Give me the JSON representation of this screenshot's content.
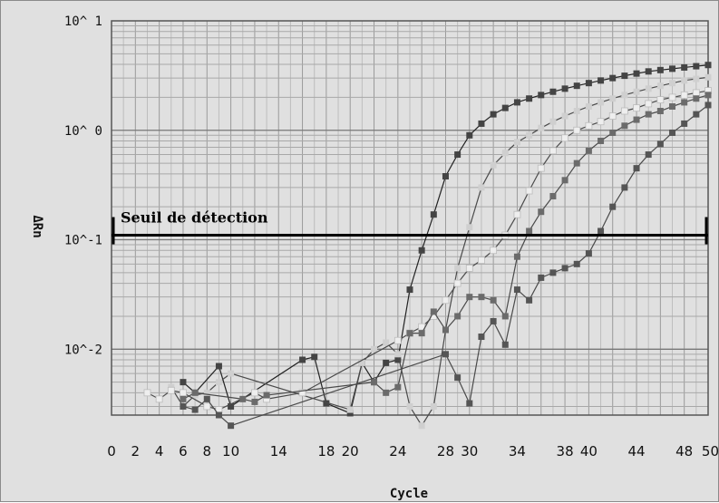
{
  "chart_data": {
    "type": "line",
    "y_scale": "log",
    "xlabel": "Cycle",
    "ylabel": "ΔRn",
    "xlim": [
      0,
      50
    ],
    "ylim": [
      0.0025,
      10
    ],
    "grid": true,
    "x_ticks": [
      "0",
      "2",
      "4",
      "6",
      "8",
      "10",
      "14",
      "18",
      "20",
      "24",
      "28",
      "30",
      "34",
      "38",
      "40",
      "44",
      "48",
      "50"
    ],
    "y_ticks": [
      {
        "value": 10,
        "label": "10^ 1"
      },
      {
        "value": 1,
        "label": "10^ 0"
      },
      {
        "value": 0.1,
        "label": "10^-1"
      },
      {
        "value": 0.01,
        "label": "10^-2"
      }
    ],
    "threshold": {
      "value": 0.11,
      "label": "Seuil de détection",
      "color": "#000000"
    },
    "series": [
      {
        "color": "#444444",
        "x": [
          6,
          7,
          9,
          10,
          16,
          17,
          18,
          20,
          21,
          22,
          23,
          24,
          25,
          26,
          27,
          28,
          29,
          30,
          31,
          32,
          33,
          34,
          35,
          36,
          37,
          38,
          39,
          40,
          41,
          42,
          43,
          44,
          45,
          46,
          47,
          48,
          49,
          50
        ],
        "y": [
          0.005,
          0.004,
          0.007,
          0.003,
          0.008,
          0.0085,
          0.0032,
          0.0026,
          0.0075,
          0.005,
          0.0075,
          0.008,
          0.035,
          0.08,
          0.17,
          0.38,
          0.6,
          0.9,
          1.15,
          1.4,
          1.6,
          1.8,
          1.95,
          2.1,
          2.25,
          2.4,
          2.55,
          2.7,
          2.85,
          3.0,
          3.15,
          3.3,
          3.45,
          3.55,
          3.65,
          3.75,
          3.85,
          3.95
        ]
      },
      {
        "color": "#cfcfcf",
        "x": [
          5,
          6,
          7,
          8,
          9,
          10,
          20,
          21,
          22,
          23,
          24,
          25,
          26,
          27,
          28,
          29,
          30,
          31,
          32,
          33,
          34,
          35,
          36,
          37,
          38,
          39,
          40,
          41,
          42,
          43,
          44,
          45,
          46,
          47,
          48,
          49,
          50
        ],
        "y": [
          0.0045,
          0.003,
          0.0038,
          0.004,
          0.005,
          0.006,
          0.0028,
          0.0075,
          0.01,
          0.0115,
          0.009,
          0.003,
          0.002,
          0.003,
          0.015,
          0.055,
          0.13,
          0.3,
          0.48,
          0.62,
          0.78,
          0.9,
          1.05,
          1.2,
          1.35,
          1.5,
          1.65,
          1.8,
          1.95,
          2.1,
          2.25,
          2.4,
          2.55,
          2.7,
          2.85,
          2.95,
          3.05
        ]
      },
      {
        "color": "#eeeeee",
        "x": [
          3,
          4,
          5,
          6,
          8,
          9,
          12,
          13,
          16,
          24,
          25,
          26,
          27,
          28,
          29,
          30,
          31,
          32,
          33,
          34,
          35,
          36,
          37,
          38,
          39,
          40,
          41,
          42,
          43,
          44,
          45,
          46,
          47,
          48,
          49,
          50
        ],
        "y": [
          0.004,
          0.0035,
          0.0042,
          0.004,
          0.003,
          0.0028,
          0.004,
          0.0035,
          0.004,
          0.012,
          0.014,
          0.016,
          0.02,
          0.028,
          0.04,
          0.055,
          0.065,
          0.08,
          0.11,
          0.17,
          0.28,
          0.45,
          0.65,
          0.85,
          1.0,
          1.1,
          1.2,
          1.35,
          1.5,
          1.6,
          1.75,
          1.9,
          2.0,
          2.1,
          2.2,
          2.3
        ]
      },
      {
        "color": "#6b6b6b",
        "x": [
          6,
          7,
          11,
          12,
          13,
          22,
          23,
          24,
          25,
          26,
          27,
          28,
          29,
          30,
          31,
          32,
          33,
          34,
          35,
          36,
          37,
          38,
          39,
          40,
          41,
          42,
          43,
          44,
          45,
          46,
          47,
          48,
          49,
          50
        ],
        "y": [
          0.0035,
          0.004,
          0.0035,
          0.0033,
          0.0038,
          0.005,
          0.004,
          0.0045,
          0.014,
          0.014,
          0.022,
          0.015,
          0.02,
          0.03,
          0.03,
          0.028,
          0.02,
          0.07,
          0.12,
          0.18,
          0.25,
          0.35,
          0.5,
          0.65,
          0.8,
          0.95,
          1.1,
          1.25,
          1.4,
          1.5,
          1.65,
          1.8,
          1.95,
          2.1
        ]
      },
      {
        "color": "#555555",
        "x": [
          6,
          7,
          8,
          9,
          10,
          28,
          29,
          30,
          31,
          32,
          33,
          34,
          35,
          36,
          37,
          38,
          39,
          40,
          41,
          42,
          43,
          44,
          45,
          46,
          47,
          48,
          49,
          50
        ],
        "y": [
          0.003,
          0.0028,
          0.0035,
          0.0025,
          0.002,
          0.009,
          0.0055,
          0.0032,
          0.013,
          0.018,
          0.011,
          0.035,
          0.028,
          0.045,
          0.05,
          0.055,
          0.06,
          0.075,
          0.12,
          0.2,
          0.3,
          0.45,
          0.6,
          0.75,
          0.95,
          1.15,
          1.4,
          1.7
        ]
      }
    ]
  }
}
